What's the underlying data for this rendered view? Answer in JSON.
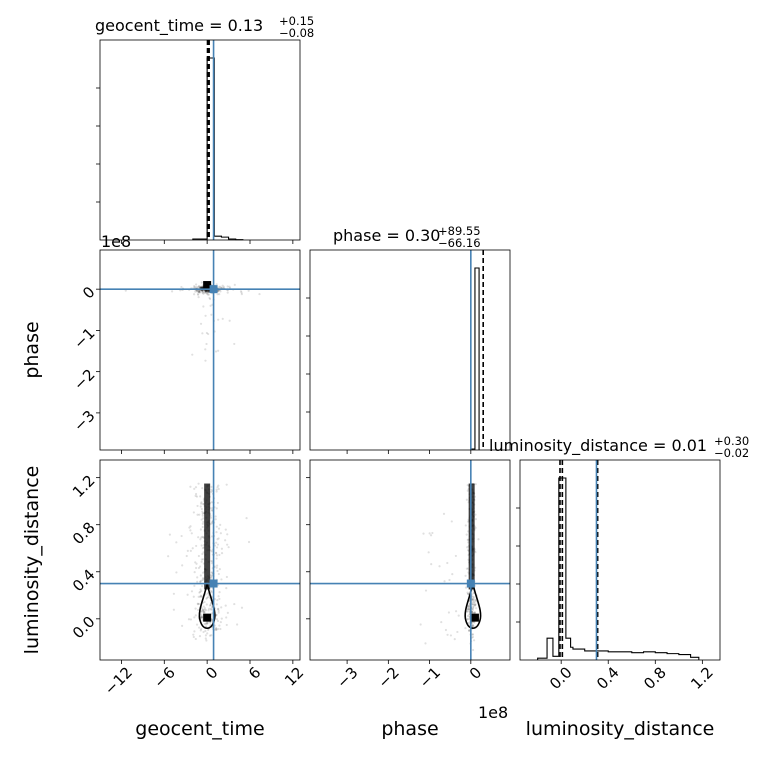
{
  "chart_data": {
    "type": "corner",
    "parameters": [
      "geocent_time",
      "phase",
      "luminosity_distance"
    ],
    "axis_labels": {
      "x": [
        "geocent_time",
        "phase",
        "luminosity_distance"
      ],
      "y": [
        "phase",
        "luminosity_distance"
      ]
    },
    "offset_labels": {
      "geocent_time_hist": "1e8",
      "phase_x": "1e8"
    },
    "titles": [
      {
        "param": "geocent_time",
        "text": "geocent_time = 0.13",
        "plus": "+0.15",
        "minus": "−0.08"
      },
      {
        "param": "phase",
        "text": "phase = 0.30",
        "plus": "+89.55",
        "minus": "−66.16"
      },
      {
        "param": "luminosity_distance",
        "text": "luminosity_distance = 0.01",
        "plus": "+0.30",
        "minus": "−0.02"
      }
    ],
    "ranges": {
      "geocent_time": [
        -15,
        13
      ],
      "phase": [
        -3.9,
        0.95
      ],
      "luminosity_distance": [
        -0.35,
        1.35
      ]
    },
    "ticks": {
      "geocent_time": {
        "values": [
          -12,
          -6,
          0,
          6,
          12
        ],
        "labels": [
          "−12",
          "−6",
          "0",
          "6",
          "12"
        ]
      },
      "phase": {
        "values": [
          -3,
          -2,
          -1,
          0
        ],
        "labels": [
          "−3",
          "−2",
          "−1",
          "0"
        ]
      },
      "luminosity_distance": {
        "values": [
          0.0,
          0.4,
          0.8,
          1.2
        ],
        "labels": [
          "0.0",
          "0.4",
          "0.8",
          "1.2"
        ]
      }
    },
    "truths": {
      "geocent_time": 0.9,
      "phase": 0.0,
      "luminosity_distance": 0.3
    },
    "quantiles": {
      "geocent_time": [
        0.05,
        0.13,
        0.28
      ],
      "phase": [
        0.3
      ],
      "luminosity_distance": [
        -0.01,
        0.01,
        0.31
      ]
    },
    "histograms": {
      "geocent_time": {
        "edges": [
          -2,
          -1,
          0,
          1,
          2,
          3,
          4,
          5
        ],
        "counts": [
          0.005,
          0.005,
          0.95,
          0.02,
          0.015,
          0.005,
          0.002
        ]
      },
      "phase": {
        "edges": [
          0.0,
          0.1,
          0.2
        ],
        "counts": [
          0.005,
          1.0
        ]
      },
      "luminosity_distance": {
        "edges": [
          -0.2,
          -0.12,
          -0.07,
          -0.02,
          0.04,
          0.08,
          0.1,
          0.2,
          0.3,
          0.4,
          0.5,
          0.6,
          0.7,
          0.8,
          0.9,
          1.0,
          1.1,
          1.17
        ],
        "counts": [
          0.01,
          0.12,
          0.02,
          1.0,
          0.12,
          0.07,
          0.06,
          0.05,
          0.05,
          0.045,
          0.045,
          0.04,
          0.045,
          0.04,
          0.035,
          0.03,
          0.015
        ]
      }
    },
    "grid": true
  }
}
